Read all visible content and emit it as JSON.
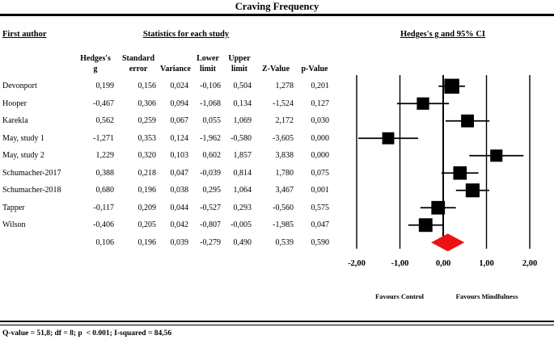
{
  "title": "Craving Frequency",
  "headers": {
    "first_author": "First author",
    "statistics": "Statistics for each study",
    "plot": "Hedges's g and 95% CI",
    "columns": [
      "Hedges's\ng",
      "Standard\nerror",
      "Variance",
      "Lower\nlimit",
      "Upper\nlimit",
      "Z-Value",
      "p-Value"
    ]
  },
  "chart_data": {
    "type": "forest",
    "effect_measure": "Hedges's g",
    "x_axis": {
      "range": [
        -2,
        2
      ],
      "ticks": [
        {
          "value": -2,
          "label": "-2,00"
        },
        {
          "value": -1,
          "label": "-1,00"
        },
        {
          "value": 0,
          "label": "0,00"
        },
        {
          "value": 1,
          "label": "1,00"
        },
        {
          "value": 2,
          "label": "2,00"
        }
      ]
    },
    "studies": [
      {
        "name": "Devonport",
        "g": 0.199,
        "se": 0.156,
        "variance": 0.024,
        "lower": -0.106,
        "upper": 0.504,
        "z": 1.278,
        "p": 0.201,
        "display": [
          "0,199",
          "0,156",
          "0,024",
          "-0,106",
          "0,504",
          "1,278",
          "0,201"
        ]
      },
      {
        "name": "Hooper",
        "g": -0.467,
        "se": 0.306,
        "variance": 0.094,
        "lower": -1.068,
        "upper": 0.134,
        "z": -1.524,
        "p": 0.127,
        "display": [
          "-0,467",
          "0,306",
          "0,094",
          "-1,068",
          "0,134",
          "-1,524",
          "0,127"
        ]
      },
      {
        "name": "Karekla",
        "g": 0.562,
        "se": 0.259,
        "variance": 0.067,
        "lower": 0.055,
        "upper": 1.069,
        "z": 2.172,
        "p": 0.03,
        "display": [
          "0,562",
          "0,259",
          "0,067",
          "0,055",
          "1,069",
          "2,172",
          "0,030"
        ]
      },
      {
        "name": "May, study 1",
        "g": -1.271,
        "se": 0.353,
        "variance": 0.124,
        "lower": -1.962,
        "upper": -0.58,
        "z": -3.605,
        "p": 0.0,
        "display": [
          "-1,271",
          "0,353",
          "0,124",
          "-1,962",
          "-0,580",
          "-3,605",
          "0,000"
        ]
      },
      {
        "name": "May, study 2",
        "g": 1.229,
        "se": 0.32,
        "variance": 0.103,
        "lower": 0.602,
        "upper": 1.857,
        "z": 3.838,
        "p": 0.0,
        "display": [
          "1,229",
          "0,320",
          "0,103",
          "0,602",
          "1,857",
          "3,838",
          "0,000"
        ]
      },
      {
        "name": "Schumacher-2017",
        "g": 0.388,
        "se": 0.218,
        "variance": 0.047,
        "lower": -0.039,
        "upper": 0.814,
        "z": 1.78,
        "p": 0.075,
        "display": [
          "0,388",
          "0,218",
          "0,047",
          "-0,039",
          "0,814",
          "1,780",
          "0,075"
        ]
      },
      {
        "name": "Schumacher-2018",
        "g": 0.68,
        "se": 0.196,
        "variance": 0.038,
        "lower": 0.295,
        "upper": 1.064,
        "z": 3.467,
        "p": 0.001,
        "display": [
          "0,680",
          "0,196",
          "0,038",
          "0,295",
          "1,064",
          "3,467",
          "0,001"
        ]
      },
      {
        "name": "Tapper",
        "g": -0.117,
        "se": 0.209,
        "variance": 0.044,
        "lower": -0.527,
        "upper": 0.293,
        "z": -0.56,
        "p": 0.575,
        "display": [
          "-0,117",
          "0,209",
          "0,044",
          "-0,527",
          "0,293",
          "-0,560",
          "0,575"
        ]
      },
      {
        "name": "Wilson",
        "g": -0.406,
        "se": 0.205,
        "variance": 0.042,
        "lower": -0.807,
        "upper": -0.005,
        "z": -1.985,
        "p": 0.047,
        "display": [
          "-0,406",
          "0,205",
          "0,042",
          "-0,807",
          "-0,005",
          "-1,985",
          "0,047"
        ]
      }
    ],
    "summary": {
      "name": "",
      "g": 0.106,
      "se": 0.196,
      "variance": 0.039,
      "lower": -0.279,
      "upper": 0.49,
      "z": 0.539,
      "p": 0.59,
      "display": [
        "0,106",
        "0,196",
        "0,039",
        "-0,279",
        "0,490",
        "0,539",
        "0,590"
      ]
    },
    "colors": {
      "marker": "#000000",
      "diamond": "#ee1111",
      "line": "#000000"
    },
    "legend": {
      "left": "Favours Control",
      "right": "Favours Mindfulness"
    }
  },
  "footer": "Q-value = 51,8; df = 8; p  < 0.001; I-squared = 84,56"
}
